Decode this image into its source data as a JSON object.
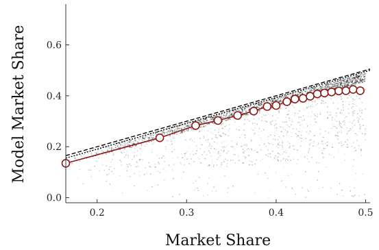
{
  "chart_data": {
    "type": "scatter",
    "title": "",
    "xlabel": "Market Share",
    "ylabel": "Model Market Share",
    "xlim": [
      0.165,
      0.505
    ],
    "ylim": [
      -0.02,
      0.76
    ],
    "x_ticks": [
      0.2,
      0.3,
      0.4,
      0.5
    ],
    "x_tick_labels": [
      "0.2",
      "0.3",
      "0.4",
      "0.5"
    ],
    "y_ticks": [
      0.0,
      0.2,
      0.4,
      0.6
    ],
    "y_tick_labels": [
      "0.0",
      "0.2",
      "0.4",
      "0.6"
    ],
    "grid": false,
    "legend": "none",
    "scatter_background": "dense gray point cloud, concentrated near the diagonal and toward x = 0.5",
    "series": [
      {
        "style": "dashed",
        "color": "#000000",
        "x": [
          0.165,
          0.505
        ],
        "y": [
          0.165,
          0.505
        ]
      },
      {
        "style": "dotted",
        "color": "#000000",
        "x": [
          0.165,
          0.505
        ],
        "y": [
          0.155,
          0.5
        ]
      },
      {
        "style": "line-markers",
        "color": "#8b1a1a",
        "marker_fill": "#ffffff",
        "x": [
          0.165,
          0.27,
          0.31,
          0.335,
          0.357,
          0.375,
          0.39,
          0.4,
          0.412,
          0.421,
          0.43,
          0.438,
          0.446,
          0.454,
          0.462,
          0.47,
          0.478,
          0.486,
          0.494
        ],
        "y": [
          0.135,
          0.235,
          0.283,
          0.303,
          0.323,
          0.34,
          0.358,
          0.362,
          0.377,
          0.387,
          0.39,
          0.398,
          0.407,
          0.411,
          0.415,
          0.419,
          0.42,
          0.425,
          0.42
        ]
      }
    ]
  }
}
